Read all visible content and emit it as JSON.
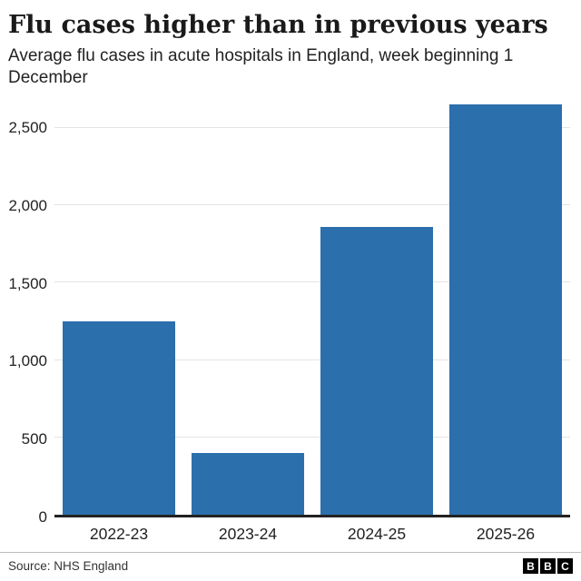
{
  "header": {
    "title": "Flu cases higher than in previous years",
    "subtitle": "Average flu cases in acute hospitals in England, week beginning 1 December"
  },
  "footer": {
    "source": "Source: NHS England",
    "logo_letters": [
      "B",
      "B",
      "C"
    ]
  },
  "chart_data": {
    "type": "bar",
    "title": "Flu cases higher than in previous years",
    "subtitle": "Average flu cases in acute hospitals in England, week beginning 1 December",
    "categories": [
      "2022-23",
      "2023-24",
      "2024-25",
      "2025-26"
    ],
    "values": [
      1250,
      400,
      1860,
      2650
    ],
    "xlabel": "",
    "ylabel": "",
    "ylim": [
      0,
      2700
    ],
    "yticks": [
      0,
      500,
      1000,
      1500,
      2000,
      2500
    ],
    "ytick_labels": [
      "0",
      "500",
      "1,000",
      "1,500",
      "2,000",
      "2,500"
    ],
    "grid": true,
    "legend": "none",
    "bar_color": "#2c6fad",
    "gridline_color": "#e3e3e3",
    "baseline_color": "#222222"
  }
}
